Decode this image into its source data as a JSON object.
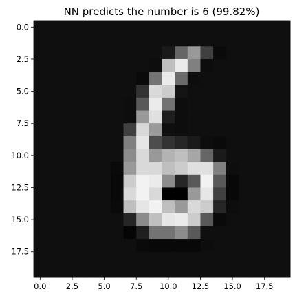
{
  "chart_data": {
    "type": "heatmap",
    "title": "NN predicts the number is 6 (99.82%)",
    "xlabel": "",
    "ylabel": "",
    "xlim": [
      -0.5,
      19.5
    ],
    "ylim": [
      19.5,
      -0.5
    ],
    "colormap": "gray",
    "value_range": [
      0,
      1
    ],
    "grid": false,
    "x_ticks": [
      0.0,
      2.5,
      5.0,
      7.5,
      10.0,
      12.5,
      15.0,
      17.5
    ],
    "x_tick_labels": [
      "0.0",
      "2.5",
      "5.0",
      "7.5",
      "10.0",
      "12.5",
      "15.0",
      "17.5"
    ],
    "y_ticks": [
      0.0,
      2.5,
      5.0,
      7.5,
      10.0,
      12.5,
      15.0,
      17.5
    ],
    "y_tick_labels": [
      "0.0",
      "2.5",
      "5.0",
      "7.5",
      "10.0",
      "12.5",
      "15.0",
      "17.5"
    ],
    "rows": 20,
    "cols": 20,
    "values": [
      [
        0.06,
        0.06,
        0.06,
        0.06,
        0.06,
        0.06,
        0.06,
        0.06,
        0.06,
        0.06,
        0.06,
        0.06,
        0.06,
        0.06,
        0.06,
        0.06,
        0.06,
        0.06,
        0.06,
        0.06
      ],
      [
        0.06,
        0.06,
        0.06,
        0.06,
        0.06,
        0.06,
        0.06,
        0.06,
        0.06,
        0.06,
        0.06,
        0.06,
        0.06,
        0.06,
        0.06,
        0.06,
        0.06,
        0.06,
        0.06,
        0.06
      ],
      [
        0.06,
        0.06,
        0.06,
        0.06,
        0.06,
        0.06,
        0.06,
        0.06,
        0.06,
        0.06,
        0.1,
        0.4,
        0.6,
        0.25,
        0.04,
        0.06,
        0.06,
        0.06,
        0.06,
        0.06
      ],
      [
        0.06,
        0.06,
        0.06,
        0.06,
        0.06,
        0.06,
        0.06,
        0.06,
        0.06,
        0.05,
        0.75,
        0.92,
        0.5,
        0.05,
        0.06,
        0.06,
        0.06,
        0.06,
        0.06,
        0.06
      ],
      [
        0.06,
        0.06,
        0.06,
        0.06,
        0.06,
        0.06,
        0.06,
        0.06,
        0.04,
        0.45,
        0.92,
        0.42,
        0.05,
        0.06,
        0.06,
        0.06,
        0.06,
        0.06,
        0.06,
        0.06
      ],
      [
        0.06,
        0.06,
        0.06,
        0.06,
        0.06,
        0.06,
        0.06,
        0.06,
        0.2,
        0.85,
        0.8,
        0.08,
        0.06,
        0.06,
        0.06,
        0.06,
        0.06,
        0.06,
        0.06,
        0.06
      ],
      [
        0.06,
        0.06,
        0.06,
        0.06,
        0.06,
        0.06,
        0.06,
        0.05,
        0.35,
        0.92,
        0.45,
        0.05,
        0.06,
        0.06,
        0.06,
        0.06,
        0.06,
        0.06,
        0.06,
        0.06
      ],
      [
        0.06,
        0.06,
        0.06,
        0.06,
        0.06,
        0.06,
        0.06,
        0.05,
        0.6,
        0.88,
        0.12,
        0.05,
        0.06,
        0.06,
        0.06,
        0.06,
        0.06,
        0.06,
        0.06,
        0.06
      ],
      [
        0.06,
        0.06,
        0.06,
        0.06,
        0.06,
        0.06,
        0.06,
        0.25,
        0.85,
        0.6,
        0.06,
        0.05,
        0.06,
        0.06,
        0.06,
        0.06,
        0.06,
        0.06,
        0.06,
        0.06
      ],
      [
        0.06,
        0.06,
        0.06,
        0.06,
        0.06,
        0.06,
        0.06,
        0.5,
        0.9,
        0.3,
        0.2,
        0.15,
        0.1,
        0.05,
        0.04,
        0.06,
        0.06,
        0.06,
        0.06,
        0.06
      ],
      [
        0.06,
        0.06,
        0.06,
        0.06,
        0.06,
        0.06,
        0.06,
        0.55,
        0.85,
        0.6,
        0.7,
        0.75,
        0.65,
        0.4,
        0.1,
        0.06,
        0.06,
        0.06,
        0.06,
        0.06
      ],
      [
        0.06,
        0.06,
        0.06,
        0.06,
        0.06,
        0.06,
        0.04,
        0.6,
        0.85,
        0.85,
        0.75,
        0.8,
        0.88,
        0.88,
        0.5,
        0.05,
        0.06,
        0.06,
        0.06,
        0.06
      ],
      [
        0.06,
        0.06,
        0.06,
        0.06,
        0.06,
        0.06,
        0.03,
        0.8,
        0.95,
        0.92,
        0.55,
        0.15,
        0.35,
        0.95,
        0.35,
        0.03,
        0.06,
        0.06,
        0.06,
        0.06
      ],
      [
        0.06,
        0.06,
        0.06,
        0.06,
        0.06,
        0.06,
        0.03,
        0.85,
        0.95,
        0.85,
        0.0,
        0.0,
        0.6,
        0.9,
        0.25,
        0.03,
        0.06,
        0.06,
        0.06,
        0.06
      ],
      [
        0.06,
        0.06,
        0.06,
        0.06,
        0.06,
        0.06,
        0.04,
        0.75,
        0.9,
        0.95,
        0.75,
        0.6,
        0.85,
        0.8,
        0.15,
        0.05,
        0.06,
        0.06,
        0.06,
        0.06
      ],
      [
        0.06,
        0.06,
        0.06,
        0.06,
        0.06,
        0.06,
        0.06,
        0.15,
        0.55,
        0.75,
        0.9,
        0.92,
        0.8,
        0.35,
        0.04,
        0.06,
        0.06,
        0.06,
        0.06,
        0.06
      ],
      [
        0.06,
        0.06,
        0.06,
        0.06,
        0.06,
        0.06,
        0.06,
        0.02,
        0.12,
        0.45,
        0.45,
        0.55,
        0.35,
        0.06,
        0.06,
        0.06,
        0.06,
        0.06,
        0.06,
        0.06
      ],
      [
        0.06,
        0.06,
        0.06,
        0.06,
        0.06,
        0.06,
        0.06,
        0.06,
        0.04,
        0.03,
        0.03,
        0.03,
        0.03,
        0.05,
        0.06,
        0.06,
        0.06,
        0.06,
        0.06,
        0.06
      ],
      [
        0.06,
        0.06,
        0.06,
        0.06,
        0.06,
        0.06,
        0.06,
        0.06,
        0.06,
        0.06,
        0.06,
        0.06,
        0.06,
        0.06,
        0.06,
        0.06,
        0.06,
        0.06,
        0.06,
        0.06
      ],
      [
        0.06,
        0.06,
        0.06,
        0.06,
        0.06,
        0.06,
        0.06,
        0.06,
        0.06,
        0.06,
        0.06,
        0.06,
        0.06,
        0.06,
        0.06,
        0.06,
        0.06,
        0.06,
        0.06,
        0.06
      ]
    ]
  }
}
